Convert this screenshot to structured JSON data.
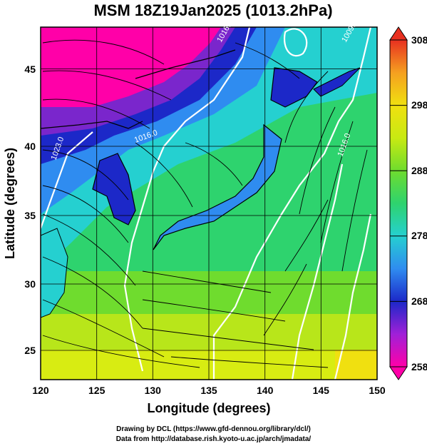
{
  "chart_data": {
    "type": "heatmap",
    "title": "MSM 18Z19Jan2025 (1013.2hPa)",
    "xlabel": "Longitude (degrees)",
    "ylabel": "Latitude  (degrees)",
    "xlim": [
      120,
      150
    ],
    "ylim": [
      22.5,
      47.6
    ],
    "x_ticks": [
      "120",
      "125",
      "130",
      "135",
      "140",
      "145",
      "150"
    ],
    "y_ticks": [
      "25",
      "30",
      "35",
      "40",
      "45"
    ],
    "grid": true,
    "colorbar": {
      "min": 258,
      "max": 308,
      "ticks": [
        "258",
        "268",
        "278",
        "288",
        "298",
        "308"
      ]
    },
    "contour_labels": [
      "1023.0",
      "1016.0",
      "1016.0",
      "1010.0",
      "1009.0",
      "1016.0"
    ],
    "streamlines": true
  },
  "credits": {
    "line1": "Drawing by DCL (https://www.gfd-dennou.org/library/dcl/)",
    "line2": "Data from http://database.rish.kyoto-u.ac.jp/arch/jmadata/"
  },
  "colors": {
    "ramp": [
      "#ff00a8",
      "#9b24d6",
      "#1c28c8",
      "#2f8cf0",
      "#25d0d0",
      "#2ed36e",
      "#9ee21a",
      "#e6ee10",
      "#f5b020",
      "#e83020"
    ]
  }
}
